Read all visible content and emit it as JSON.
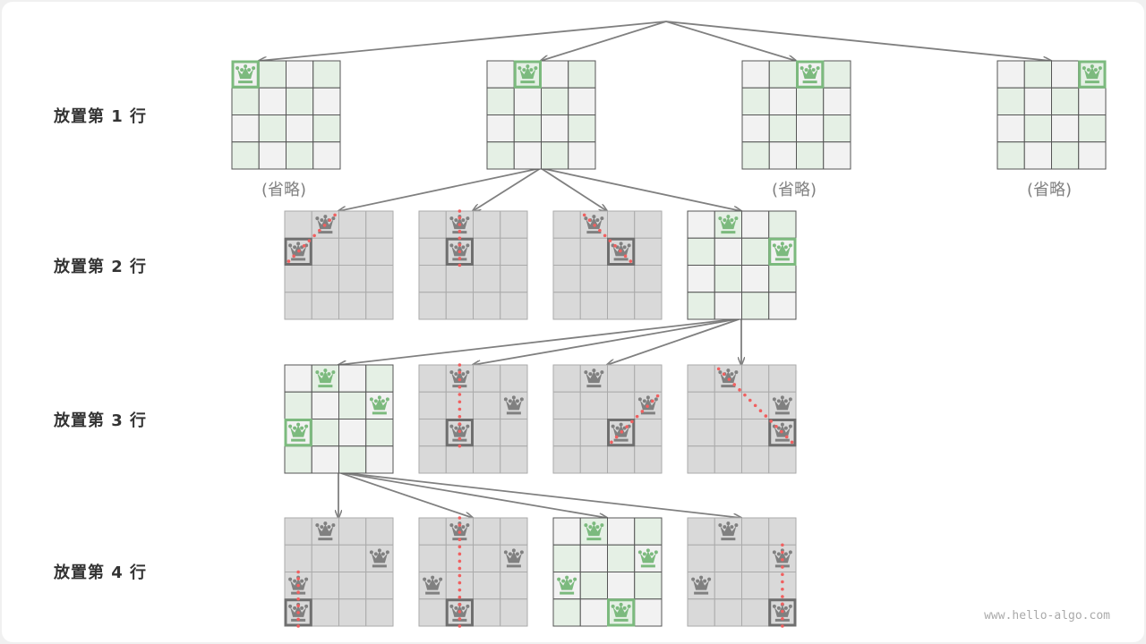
{
  "row_labels": [
    "放置第 1 行",
    "放置第 2 行",
    "放置第 3 行",
    "放置第 4 行"
  ],
  "omitted_label": "(省略)",
  "watermark": "www.hello-algo.com",
  "colors": {
    "green": "#7cba7e",
    "green_cell": "#e5f0e5",
    "light_cell": "#f2f2f2",
    "gray_cell": "#d9d9d9",
    "gray_queen": "#808080",
    "conflict_dot": "#f06060",
    "arrow": "#808080"
  },
  "levels": [
    {
      "boards": [
        {
          "state": "valid",
          "queens": [
            [
              0,
              0
            ]
          ],
          "current": [
            0,
            0
          ],
          "omitted": true
        },
        {
          "state": "valid",
          "queens": [
            [
              0,
              1
            ]
          ],
          "current": [
            0,
            1
          ],
          "omitted": false
        },
        {
          "state": "valid",
          "queens": [
            [
              0,
              2
            ]
          ],
          "current": [
            0,
            2
          ],
          "omitted": true
        },
        {
          "state": "valid",
          "queens": [
            [
              0,
              3
            ]
          ],
          "current": [
            0,
            3
          ],
          "omitted": true
        }
      ]
    },
    {
      "boards": [
        {
          "state": "conflict",
          "queens": [
            [
              0,
              1
            ],
            [
              1,
              0
            ]
          ],
          "current": [
            1,
            0
          ],
          "conflict": "diagonal"
        },
        {
          "state": "conflict",
          "queens": [
            [
              0,
              1
            ],
            [
              1,
              1
            ]
          ],
          "current": [
            1,
            1
          ],
          "conflict": "column"
        },
        {
          "state": "conflict",
          "queens": [
            [
              0,
              1
            ],
            [
              1,
              2
            ]
          ],
          "current": [
            1,
            2
          ],
          "conflict": "anti-diagonal"
        },
        {
          "state": "valid",
          "queens": [
            [
              0,
              1
            ],
            [
              1,
              3
            ]
          ],
          "current": [
            1,
            3
          ]
        }
      ]
    },
    {
      "boards": [
        {
          "state": "valid",
          "queens": [
            [
              0,
              1
            ],
            [
              1,
              3
            ],
            [
              2,
              0
            ]
          ],
          "current": [
            2,
            0
          ]
        },
        {
          "state": "conflict",
          "queens": [
            [
              0,
              1
            ],
            [
              1,
              3
            ],
            [
              2,
              1
            ]
          ],
          "current": [
            2,
            1
          ],
          "conflict": "column"
        },
        {
          "state": "conflict",
          "queens": [
            [
              0,
              1
            ],
            [
              1,
              3
            ],
            [
              2,
              2
            ]
          ],
          "current": [
            2,
            2
          ],
          "conflict": "diagonal"
        },
        {
          "state": "conflict",
          "queens": [
            [
              0,
              1
            ],
            [
              1,
              3
            ],
            [
              2,
              3
            ]
          ],
          "current": [
            2,
            3
          ],
          "conflict": "column"
        }
      ]
    },
    {
      "boards": [
        {
          "state": "conflict",
          "queens": [
            [
              0,
              1
            ],
            [
              1,
              3
            ],
            [
              2,
              0
            ],
            [
              3,
              0
            ]
          ],
          "current": [
            3,
            0
          ],
          "conflict": "column"
        },
        {
          "state": "conflict",
          "queens": [
            [
              0,
              1
            ],
            [
              1,
              3
            ],
            [
              2,
              0
            ],
            [
              3,
              1
            ]
          ],
          "current": [
            3,
            1
          ],
          "conflict": "anti-diagonal"
        },
        {
          "state": "valid",
          "queens": [
            [
              0,
              1
            ],
            [
              1,
              3
            ],
            [
              2,
              0
            ],
            [
              3,
              2
            ]
          ],
          "current": [
            3,
            2
          ]
        },
        {
          "state": "conflict",
          "queens": [
            [
              0,
              1
            ],
            [
              1,
              3
            ],
            [
              2,
              0
            ],
            [
              3,
              3
            ]
          ],
          "current": [
            3,
            3
          ],
          "conflict": "column"
        }
      ]
    }
  ]
}
